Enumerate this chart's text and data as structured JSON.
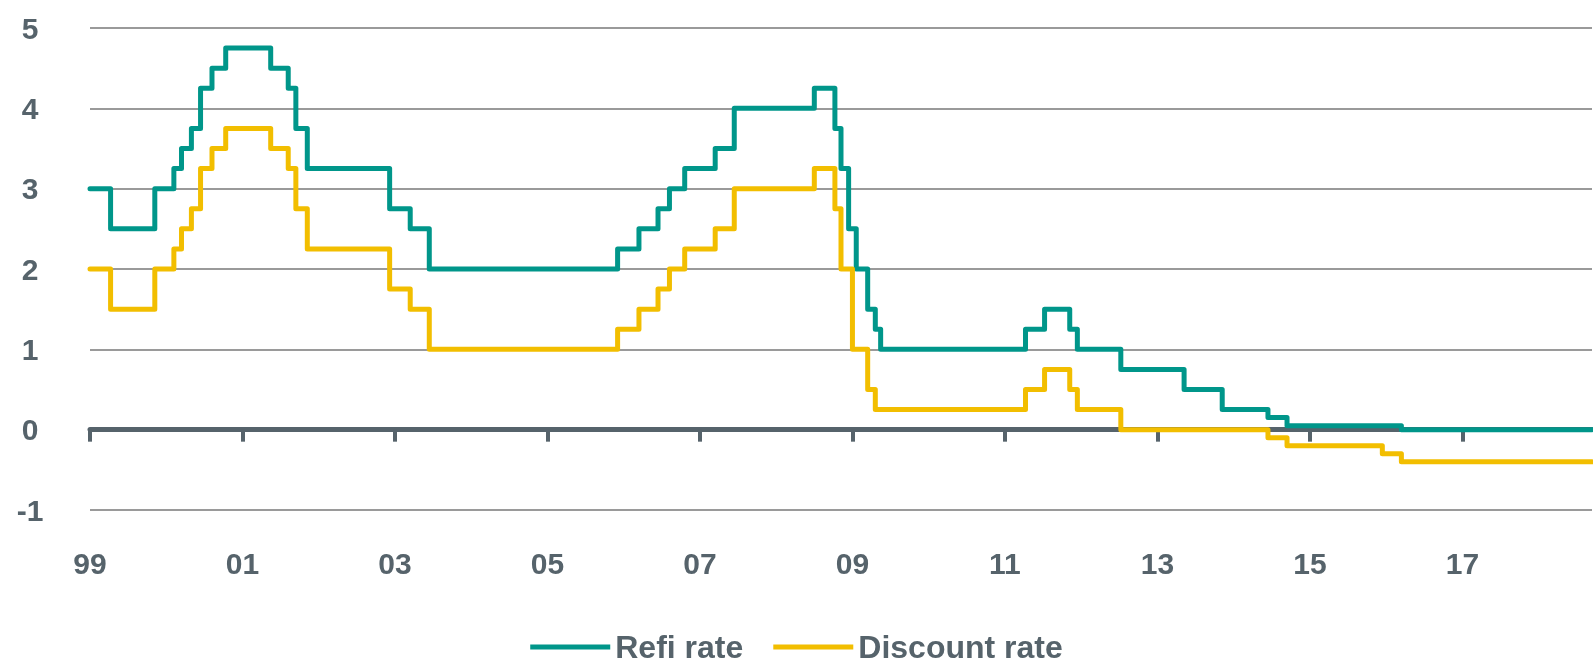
{
  "chart_data": {
    "type": "step",
    "xlim": [
      1999,
      2018.7
    ],
    "xticks": [
      {
        "value": 1999,
        "label": "99"
      },
      {
        "value": 2001,
        "label": "01"
      },
      {
        "value": 2003,
        "label": "03"
      },
      {
        "value": 2005,
        "label": "05"
      },
      {
        "value": 2007,
        "label": "07"
      },
      {
        "value": 2009,
        "label": "09"
      },
      {
        "value": 2011,
        "label": "11"
      },
      {
        "value": 2013,
        "label": "13"
      },
      {
        "value": 2015,
        "label": "15"
      },
      {
        "value": 2017,
        "label": "17"
      }
    ],
    "ylim": [
      -1,
      5
    ],
    "yticks": [
      -1,
      0,
      1,
      2,
      3,
      4,
      5
    ],
    "grid": "y",
    "legend": "bottom",
    "marker": "none",
    "line_style": "solid",
    "series": [
      {
        "name": "Refi rate",
        "color": "#00968a",
        "x": [
          1999,
          1999.27,
          1999.85,
          2000.1,
          2000.2,
          2000.33,
          2000.45,
          2000.6,
          2000.78,
          2001.37,
          2001.6,
          2001.7,
          2001.85,
          2002.93,
          2003.2,
          2003.45,
          2005.92,
          2006.2,
          2006.45,
          2006.6,
          2006.8,
          2007.2,
          2007.45,
          2008.5,
          2008.77,
          2008.85,
          2008.95,
          2009.05,
          2009.2,
          2009.3,
          2009.37,
          2011.27,
          2011.52,
          2011.85,
          2011.95,
          2012.52,
          2013.35,
          2013.85,
          2014.45,
          2014.7,
          2016.2,
          2018.7
        ],
        "values": [
          3,
          2.5,
          3,
          3.25,
          3.5,
          3.75,
          4.25,
          4.5,
          4.75,
          4.5,
          4.25,
          3.75,
          3.25,
          2.75,
          2.5,
          2,
          2.25,
          2.5,
          2.75,
          3,
          3.25,
          3.5,
          4,
          4.25,
          3.75,
          3.25,
          2.5,
          2,
          1.5,
          1.25,
          1,
          1.25,
          1.5,
          1.25,
          1,
          0.75,
          0.5,
          0.25,
          0.15,
          0.05,
          0,
          0
        ]
      },
      {
        "name": "Discount rate",
        "color": "#f2be00",
        "x": [
          1999,
          1999.27,
          1999.85,
          2000.1,
          2000.2,
          2000.33,
          2000.45,
          2000.6,
          2000.78,
          2001.37,
          2001.6,
          2001.7,
          2001.85,
          2002.93,
          2003.2,
          2003.45,
          2005.92,
          2006.2,
          2006.45,
          2006.6,
          2006.8,
          2007.2,
          2007.45,
          2008.5,
          2008.77,
          2008.85,
          2009.0,
          2009.2,
          2009.3,
          2011.27,
          2011.52,
          2011.85,
          2011.95,
          2012.52,
          2014.45,
          2014.7,
          2015.95,
          2016.2,
          2018.7
        ],
        "values": [
          2,
          1.5,
          2,
          2.25,
          2.5,
          2.75,
          3.25,
          3.5,
          3.75,
          3.5,
          3.25,
          2.75,
          2.25,
          1.75,
          1.5,
          1,
          1.25,
          1.5,
          1.75,
          2,
          2.25,
          2.5,
          3,
          3.25,
          2.75,
          2,
          1,
          0.5,
          0.25,
          0.5,
          0.75,
          0.5,
          0.25,
          0,
          -0.1,
          -0.2,
          -0.3,
          -0.4,
          -0.4
        ]
      }
    ]
  }
}
